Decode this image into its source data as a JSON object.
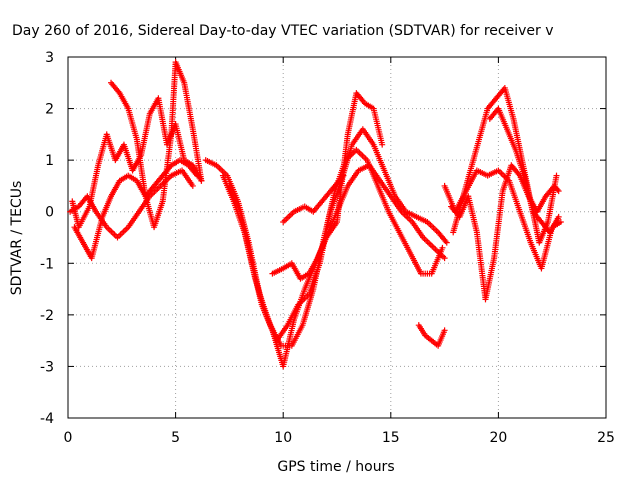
{
  "chart_data": {
    "type": "scatter",
    "title": "Day 260 of 2016, Sidereal Day-to-day VTEC variation (SDTVAR) for receiver v",
    "xlabel": "GPS time / hours",
    "ylabel": "SDTVAR / TECUs",
    "xlim": [
      0,
      25
    ],
    "ylim": [
      -4,
      3
    ],
    "xticks": [
      0,
      5,
      10,
      15,
      20,
      25
    ],
    "yticks": [
      -4,
      -3,
      -2,
      -1,
      0,
      1,
      2,
      3
    ],
    "grid": true,
    "marker": "+",
    "color": "#ff0000",
    "series": [
      {
        "x": [
          0.2,
          0.5,
          1.0,
          1.4,
          1.8,
          2.2,
          2.6,
          3.0,
          3.4,
          3.8,
          4.2,
          4.6,
          5.0,
          5.4,
          5.8,
          6.2
        ],
        "y": [
          0.2,
          -0.3,
          0.1,
          0.9,
          1.5,
          1.0,
          1.3,
          0.8,
          1.1,
          1.9,
          2.2,
          1.3,
          1.7,
          1.0,
          0.9,
          0.6
        ]
      },
      {
        "x": [
          0.3,
          0.7,
          1.1,
          1.6,
          2.0,
          2.4,
          2.8,
          3.2,
          3.6,
          4.0,
          4.4,
          4.8,
          5.2,
          5.6,
          6.0
        ],
        "y": [
          -0.3,
          -0.6,
          -0.9,
          -0.1,
          0.3,
          0.6,
          0.7,
          0.6,
          0.3,
          0.5,
          0.7,
          0.9,
          1.0,
          0.9,
          0.7
        ]
      },
      {
        "x": [
          0.1,
          0.5,
          0.9,
          1.3,
          1.8,
          2.3,
          2.8,
          3.3,
          3.8,
          4.3,
          4.8,
          5.3,
          5.8
        ],
        "y": [
          0.0,
          0.1,
          0.3,
          0.0,
          -0.3,
          -0.5,
          -0.3,
          0.0,
          0.3,
          0.5,
          0.7,
          0.8,
          0.5
        ]
      },
      {
        "x": [
          2.0,
          2.4,
          2.8,
          3.2,
          3.6,
          4.0,
          4.4,
          4.8,
          5.0,
          5.4,
          5.8,
          6.2
        ],
        "y": [
          2.5,
          2.3,
          2.0,
          1.4,
          0.3,
          -0.3,
          0.2,
          1.5,
          2.9,
          2.5,
          1.6,
          0.6
        ]
      },
      {
        "x": [
          6.4,
          6.9,
          7.4,
          7.9,
          8.4,
          8.9,
          9.4,
          9.9,
          10.4,
          10.9,
          11.4,
          11.9,
          12.4,
          12.9,
          13.4,
          13.9,
          14.4,
          14.9,
          15.4,
          15.9,
          16.4,
          16.9,
          17.4
        ],
        "y": [
          1.0,
          0.9,
          0.7,
          0.2,
          -0.6,
          -1.6,
          -2.2,
          -2.6,
          -2.6,
          -2.2,
          -1.5,
          -0.5,
          0.4,
          1.0,
          1.2,
          1.0,
          0.5,
          0.0,
          -0.4,
          -0.8,
          -1.2,
          -1.2,
          -0.7
        ]
      },
      {
        "x": [
          7.2,
          7.7,
          8.2,
          8.7,
          9.2,
          9.7,
          10.2,
          10.7,
          11.2,
          11.7,
          12.2,
          12.7,
          13.2,
          13.7,
          14.2,
          14.7,
          15.2,
          15.7,
          16.2,
          16.7,
          17.2,
          17.6
        ],
        "y": [
          0.7,
          0.2,
          -0.4,
          -1.3,
          -2.0,
          -2.5,
          -2.2,
          -1.8,
          -1.6,
          -1.0,
          0.0,
          0.6,
          1.3,
          1.6,
          1.3,
          0.8,
          0.3,
          0.0,
          -0.1,
          -0.2,
          -0.4,
          -0.6
        ]
      },
      {
        "x": [
          7.5,
          8.0,
          8.5,
          9.0,
          9.5,
          10.0,
          10.5,
          11.0,
          11.5,
          12.0,
          12.5,
          13.0,
          13.5,
          14.0,
          14.5,
          15.0,
          15.5,
          16.0,
          16.5,
          17.0,
          17.5
        ],
        "y": [
          0.5,
          0.0,
          -0.9,
          -1.8,
          -2.3,
          -3.0,
          -2.1,
          -1.5,
          -1.0,
          -0.5,
          0.0,
          0.5,
          0.8,
          0.9,
          0.6,
          0.3,
          0.0,
          -0.2,
          -0.5,
          -0.7,
          -0.9
        ]
      },
      {
        "x": [
          9.5,
          10.0,
          10.4,
          10.8,
          11.2,
          11.6,
          12.0,
          12.5,
          13.0,
          13.4,
          13.8,
          14.2,
          14.6
        ],
        "y": [
          -1.2,
          -1.1,
          -1.0,
          -1.3,
          -1.2,
          -0.9,
          -0.5,
          -0.2,
          1.5,
          2.3,
          2.1,
          2.0,
          1.3
        ]
      },
      {
        "x": [
          10.0,
          10.5,
          11.0,
          11.4,
          12.0,
          12.4,
          12.8
        ],
        "y": [
          -0.2,
          0.0,
          0.1,
          0.0,
          0.3,
          0.5,
          0.7
        ]
      },
      {
        "x": [
          16.3,
          16.6,
          16.9,
          17.2,
          17.5
        ],
        "y": [
          -2.2,
          -2.4,
          -2.5,
          -2.6,
          -2.3
        ]
      },
      {
        "x": [
          17.9,
          18.3,
          18.7,
          19.1,
          19.5,
          19.9,
          20.3,
          20.7,
          21.1,
          21.5,
          21.9,
          22.3,
          22.7
        ],
        "y": [
          -0.4,
          0.2,
          0.8,
          1.4,
          2.0,
          2.2,
          2.4,
          1.8,
          1.0,
          0.2,
          -0.6,
          -0.2,
          0.7
        ]
      },
      {
        "x": [
          17.8,
          18.2,
          18.6,
          19.0,
          19.4,
          19.8,
          20.2,
          20.6,
          21.0,
          21.4,
          21.8,
          22.2,
          22.6,
          22.8
        ],
        "y": [
          0.1,
          -0.1,
          0.3,
          -0.4,
          -1.7,
          -0.9,
          0.4,
          0.9,
          0.7,
          0.3,
          0.0,
          0.3,
          0.5,
          0.4
        ]
      },
      {
        "x": [
          17.5,
          18.0,
          18.5,
          19.0,
          19.5,
          20.0,
          20.5,
          21.0,
          21.5,
          22.0,
          22.5,
          22.9
        ],
        "y": [
          0.5,
          0.0,
          0.4,
          0.8,
          0.7,
          0.8,
          0.6,
          0.0,
          -0.6,
          -1.1,
          -0.3,
          -0.2
        ]
      },
      {
        "x": [
          19.6,
          20.0,
          20.4,
          20.8,
          21.2,
          21.6,
          22.0,
          22.4,
          22.8
        ],
        "y": [
          1.8,
          2.0,
          1.6,
          1.2,
          0.7,
          0.0,
          -0.2,
          -0.4,
          -0.1
        ]
      }
    ]
  }
}
